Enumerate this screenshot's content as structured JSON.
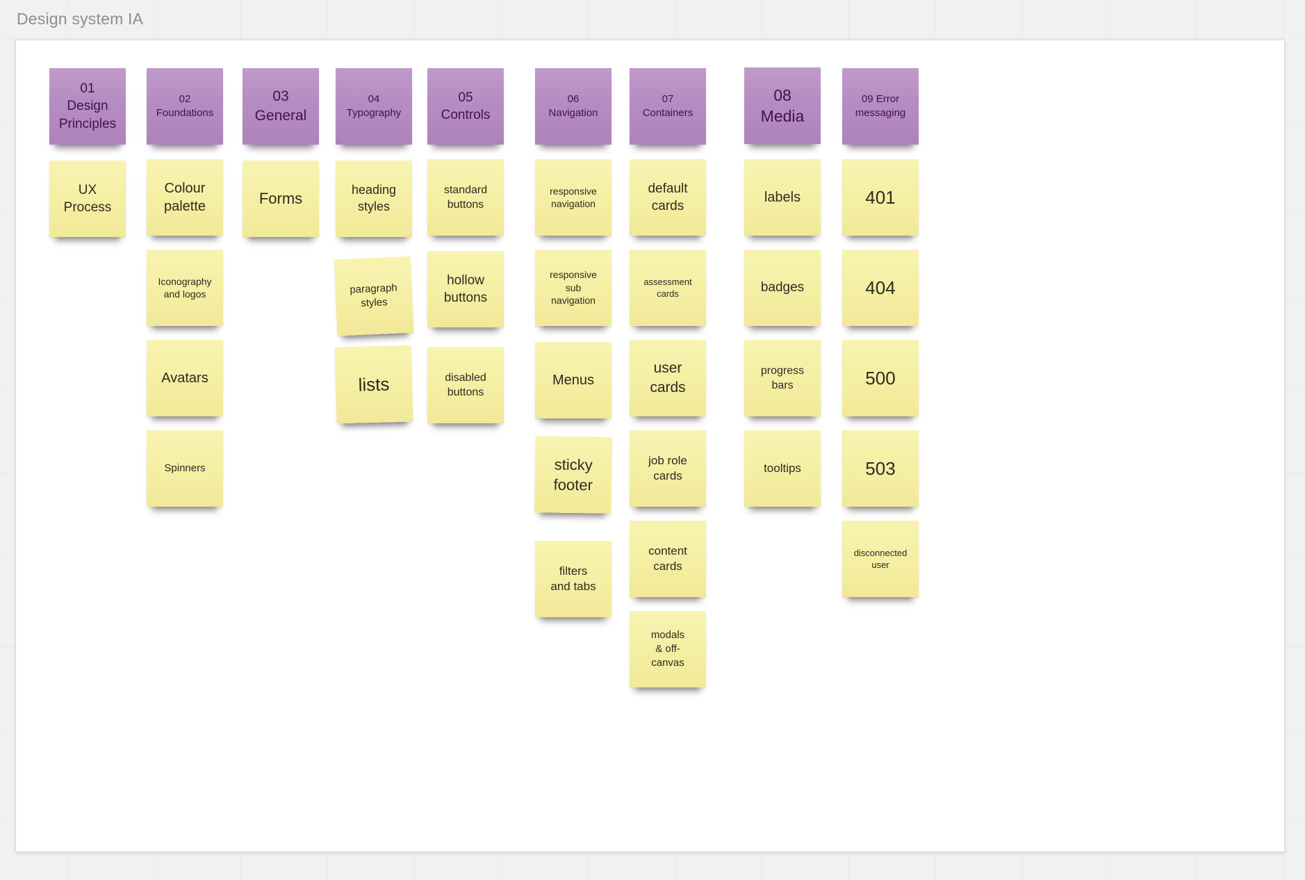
{
  "app": {
    "title": "Design system IA"
  },
  "colors": {
    "background": "#f1f1f2",
    "grid_line": "#e9e9ec",
    "canvas": "#ffffff",
    "title_text": "#8d8d8d",
    "category_note": "#b68dc3",
    "category_note_text": "#44104c",
    "note": "#f5efa4",
    "note_text": "#2e2a20"
  },
  "board": {
    "columns": [
      {
        "header": {
          "label": "01 Design Principles",
          "lines": [
            "01",
            "Design",
            "Principles"
          ],
          "size": 19
        },
        "notes": [
          {
            "label": "UX Process",
            "lines": [
              "UX",
              "Process"
            ],
            "size": 19
          }
        ]
      },
      {
        "header": {
          "label": "02 Foundations",
          "lines": [
            "02",
            "Foundations"
          ],
          "size": 15
        },
        "notes": [
          {
            "label": "Colour palette",
            "lines": [
              "Colour",
              "palette"
            ],
            "size": 20
          },
          {
            "label": "Iconography and logos",
            "lines": [
              "Iconography",
              "and logos"
            ],
            "size": 14
          },
          {
            "label": "Avatars",
            "lines": [
              "Avatars"
            ],
            "size": 20
          },
          {
            "label": "Spinners",
            "lines": [
              "Spinners"
            ],
            "size": 15
          }
        ]
      },
      {
        "header": {
          "label": "03 General",
          "lines": [
            "03",
            "General"
          ],
          "size": 21
        },
        "notes": [
          {
            "label": "Forms",
            "lines": [
              "Forms"
            ],
            "size": 22
          }
        ]
      },
      {
        "header": {
          "label": "04 Typography",
          "lines": [
            "04",
            "Typography"
          ],
          "size": 15
        },
        "notes": [
          {
            "label": "heading styles",
            "lines": [
              "heading",
              "styles"
            ],
            "size": 18
          },
          {
            "label": "paragraph styles",
            "lines": [
              "paragraph",
              "styles"
            ],
            "size": 15,
            "tilt": -2.5
          },
          {
            "label": "lists",
            "lines": [
              "lists"
            ],
            "size": 26,
            "tilt": -1.5
          }
        ]
      },
      {
        "header": {
          "label": "05 Controls",
          "lines": [
            "05",
            "Controls"
          ],
          "size": 19
        },
        "notes": [
          {
            "label": "standard buttons",
            "lines": [
              "standard",
              "buttons"
            ],
            "size": 16
          },
          {
            "label": "hollow buttons",
            "lines": [
              "hollow",
              "buttons"
            ],
            "size": 19
          },
          {
            "label": "disabled buttons",
            "lines": [
              "disabled",
              "buttons"
            ],
            "size": 16
          }
        ]
      },
      {
        "header": {
          "label": "06 Navigation",
          "lines": [
            "06",
            "Navigation"
          ],
          "size": 15
        },
        "notes": [
          {
            "label": "responsive navigation",
            "lines": [
              "responsive",
              "navigation"
            ],
            "size": 14
          },
          {
            "label": "responsive sub navigation",
            "lines": [
              "responsive",
              "sub",
              "navigation"
            ],
            "size": 14
          },
          {
            "label": "Menus",
            "lines": [
              "Menus"
            ],
            "size": 20
          },
          {
            "label": "sticky footer",
            "lines": [
              "sticky",
              "footer"
            ],
            "size": 22,
            "tilt": 0.8
          },
          {
            "label": "filters and tabs",
            "lines": [
              "filters",
              "and tabs"
            ],
            "size": 17
          }
        ]
      },
      {
        "header": {
          "label": "07 Containers",
          "lines": [
            "07",
            "Containers"
          ],
          "size": 15
        },
        "notes": [
          {
            "label": "default cards",
            "lines": [
              "default",
              "cards"
            ],
            "size": 19
          },
          {
            "label": "assessment cards",
            "lines": [
              "assessment",
              "cards"
            ],
            "size": 13
          },
          {
            "label": "user cards",
            "lines": [
              "user",
              "cards"
            ],
            "size": 21
          },
          {
            "label": "job role cards",
            "lines": [
              "job role",
              "cards"
            ],
            "size": 17
          },
          {
            "label": "content cards",
            "lines": [
              "content",
              "cards"
            ],
            "size": 17
          },
          {
            "label": "modals & off-canvas",
            "lines": [
              "modals",
              "& off-",
              "canvas"
            ],
            "size": 15
          }
        ]
      },
      {
        "header": {
          "label": "08 Media",
          "lines": [
            "08",
            "Media"
          ],
          "size": 23
        },
        "notes": [
          {
            "label": "labels",
            "lines": [
              "labels"
            ],
            "size": 20
          },
          {
            "label": "badges",
            "lines": [
              "badges"
            ],
            "size": 19
          },
          {
            "label": "progress bars",
            "lines": [
              "progress",
              "bars"
            ],
            "size": 16
          },
          {
            "label": "tooltips",
            "lines": [
              "tooltips"
            ],
            "size": 17
          }
        ]
      },
      {
        "header": {
          "label": "09 Error messaging",
          "lines": [
            "09 Error",
            "messaging"
          ],
          "size": 15
        },
        "notes": [
          {
            "label": "401",
            "lines": [
              "401"
            ],
            "size": 26
          },
          {
            "label": "404",
            "lines": [
              "404"
            ],
            "size": 26
          },
          {
            "label": "500",
            "lines": [
              "500"
            ],
            "size": 26
          },
          {
            "label": "503",
            "lines": [
              "503"
            ],
            "size": 26
          },
          {
            "label": "disconnected user",
            "lines": [
              "disconnected",
              "user"
            ],
            "size": 13
          }
        ]
      }
    ]
  }
}
